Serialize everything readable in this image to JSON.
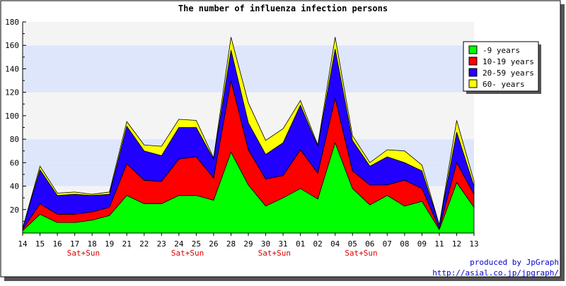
{
  "chart_data": {
    "type": "area",
    "stacked": true,
    "title": "The number of influenza infection persons",
    "x": [
      "14",
      "15",
      "16",
      "17",
      "18",
      "19",
      "21",
      "22",
      "23",
      "24",
      "25",
      "26",
      "28",
      "29",
      "30",
      "31",
      "01",
      "02",
      "04",
      "05",
      "06",
      "07",
      "08",
      "09",
      "11",
      "12",
      "13"
    ],
    "weekend_label": "Sat+Sun",
    "weekend_positions": [
      "17",
      "24",
      "30",
      "05"
    ],
    "ylim": [
      0,
      180
    ],
    "yticks": [
      20,
      40,
      60,
      80,
      100,
      120,
      140,
      160,
      180
    ],
    "grid": true,
    "band_colors": [
      "#f4f4f4",
      "#dde6fb"
    ],
    "legend_position": "right",
    "series": [
      {
        "name": "-9 years",
        "color": "#00ff00",
        "values": [
          2,
          16,
          9,
          9,
          11,
          15,
          32,
          25,
          25,
          32,
          32,
          28,
          69,
          41,
          23,
          30,
          38,
          29,
          77,
          38,
          24,
          32,
          23,
          27,
          3,
          43,
          22
        ]
      },
      {
        "name": "10-19 years",
        "color": "#ff0000",
        "values": [
          1,
          9,
          7,
          7,
          7,
          7,
          27,
          20,
          19,
          31,
          33,
          19,
          61,
          30,
          23,
          19,
          33,
          22,
          38,
          15,
          17,
          9,
          22,
          11,
          1,
          17,
          11
        ]
      },
      {
        "name": "20-59 years",
        "color": "#2200ff",
        "values": [
          1,
          29,
          16,
          17,
          14,
          11,
          32,
          25,
          22,
          27,
          25,
          16,
          26,
          23,
          21,
          28,
          38,
          23,
          42,
          26,
          16,
          24,
          15,
          15,
          3,
          26,
          7
        ]
      },
      {
        "name": "60- years",
        "color": "#ffff00",
        "values": [
          0,
          3,
          2,
          2,
          1,
          2,
          4,
          5,
          8,
          7,
          6,
          1,
          11,
          17,
          12,
          12,
          4,
          1,
          10,
          4,
          3,
          6,
          10,
          5,
          0,
          10,
          4
        ]
      }
    ],
    "credit_line1": "produced by JpGraph",
    "credit_line2": "http://asial.co.jp/jpgraph/"
  }
}
